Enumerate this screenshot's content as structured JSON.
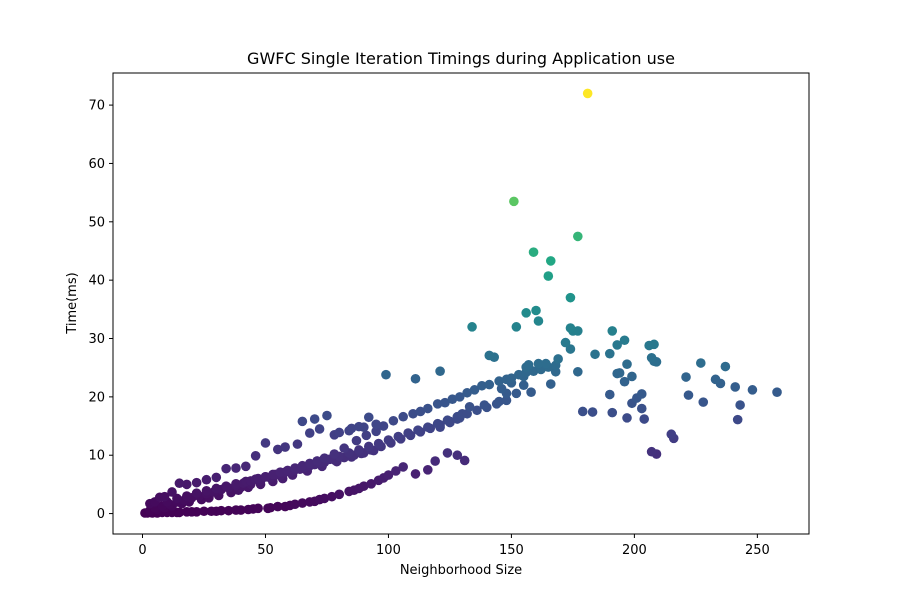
{
  "chart_data": {
    "type": "scatter",
    "title": "GWFC Single Iteration Timings during Application use",
    "xlabel": "Neighborhood Size",
    "ylabel": "Time(ms)",
    "xlim": [
      -12,
      271
    ],
    "ylim": [
      -3.5,
      75.5
    ],
    "xticks": [
      0,
      50,
      100,
      150,
      200,
      250
    ],
    "yticks": [
      0,
      10,
      20,
      30,
      40,
      50,
      60,
      70
    ],
    "grid": false,
    "colormap": "viridis",
    "color_range": [
      0,
      72
    ],
    "x": [
      181,
      151,
      177,
      159,
      166,
      165,
      174,
      156,
      160,
      161,
      134,
      152,
      174,
      175,
      177,
      191,
      196,
      206,
      208,
      207,
      208,
      209,
      197,
      199,
      193,
      193,
      190,
      184,
      174,
      172,
      169,
      168,
      164,
      162,
      161,
      157,
      156,
      155,
      150,
      146,
      143,
      141,
      258,
      248,
      243,
      242,
      241,
      237,
      235,
      233,
      228,
      227,
      222,
      221,
      215,
      216,
      209,
      207,
      204,
      203,
      203,
      201,
      199,
      197,
      196,
      194,
      191,
      190,
      183,
      179,
      177,
      168,
      166,
      158,
      155,
      152,
      148,
      145,
      139,
      133,
      130,
      128,
      125,
      121,
      99,
      111,
      121,
      131,
      128,
      124,
      119,
      116,
      111,
      106,
      103,
      100,
      98,
      96,
      93,
      90,
      88,
      86,
      84,
      80,
      77,
      74,
      72,
      70,
      68,
      65,
      62,
      60,
      58,
      55,
      52,
      51,
      47,
      45,
      43,
      40,
      38,
      35,
      32,
      30,
      28,
      25,
      22,
      20,
      18,
      15,
      14,
      12,
      10,
      8,
      6,
      4,
      2,
      1,
      65,
      70,
      75,
      80,
      85,
      90,
      95,
      92,
      88,
      84,
      78,
      72,
      68,
      63,
      58,
      55,
      50,
      46,
      42,
      38,
      34,
      30,
      26,
      22,
      18,
      15,
      12,
      9,
      7,
      5,
      3,
      60,
      66,
      71,
      74,
      78,
      82,
      87,
      91,
      95,
      98,
      102,
      106,
      110,
      113,
      116,
      120,
      123,
      126,
      129,
      132,
      135,
      138,
      141,
      145,
      148,
      150,
      153,
      156,
      159,
      162,
      165,
      40,
      44,
      48,
      52,
      56,
      60,
      64,
      68,
      72,
      76,
      80,
      84,
      88,
      92,
      96,
      100,
      104,
      108,
      112,
      116,
      120,
      124,
      128,
      132,
      136,
      140,
      144,
      148,
      10,
      14,
      18,
      22,
      26,
      30,
      34,
      38,
      42,
      46,
      50,
      54,
      58,
      62,
      66,
      70,
      74,
      78,
      82,
      86,
      90,
      94,
      5,
      8,
      11,
      14,
      17,
      20,
      23,
      26,
      29,
      32,
      35,
      38,
      41,
      44,
      47,
      50,
      53,
      56,
      59,
      62,
      65,
      68,
      71,
      3,
      6,
      9,
      12,
      16,
      19,
      24,
      27,
      31,
      36,
      39,
      43,
      48,
      53,
      57,
      61,
      67,
      73,
      79,
      85,
      89,
      93,
      97,
      101,
      105,
      109,
      113,
      117,
      121,
      125,
      129
    ],
    "y": [
      72.0,
      53.5,
      47.5,
      44.8,
      43.3,
      40.7,
      37.0,
      34.4,
      34.8,
      33.0,
      32.0,
      32.0,
      31.8,
      31.3,
      31.3,
      31.3,
      29.7,
      28.8,
      29.0,
      26.7,
      26.1,
      26.0,
      25.6,
      23.5,
      24.0,
      28.9,
      27.4,
      27.3,
      28.2,
      29.3,
      26.5,
      25.4,
      25.7,
      24.9,
      25.7,
      25.5,
      25.1,
      23.5,
      22.4,
      21.4,
      26.8,
      27.1,
      20.8,
      21.2,
      18.6,
      16.1,
      21.7,
      25.2,
      22.3,
      23.0,
      19.1,
      25.8,
      20.3,
      23.4,
      13.6,
      12.9,
      10.2,
      10.6,
      16.2,
      20.5,
      18.0,
      19.8,
      18.9,
      16.4,
      22.6,
      24.1,
      17.3,
      20.4,
      17.4,
      17.5,
      24.3,
      24.3,
      22.2,
      20.8,
      22.0,
      20.6,
      20.6,
      19.2,
      18.6,
      18.3,
      17.1,
      16.2,
      15.6,
      14.8,
      23.8,
      23.1,
      24.4,
      9.1,
      10.0,
      10.4,
      9.0,
      7.5,
      6.8,
      8.0,
      7.3,
      6.6,
      6.1,
      5.7,
      5.1,
      4.7,
      4.3,
      4.0,
      3.8,
      3.3,
      2.9,
      2.6,
      2.4,
      2.1,
      2.0,
      1.8,
      1.6,
      1.4,
      1.2,
      1.2,
      1.0,
      0.9,
      0.9,
      0.8,
      0.7,
      0.6,
      0.6,
      0.5,
      0.5,
      0.4,
      0.4,
      0.4,
      0.3,
      0.3,
      0.3,
      0.2,
      0.2,
      0.2,
      0.2,
      0.2,
      0.1,
      0.1,
      0.1,
      0.1,
      15.8,
      16.2,
      16.8,
      13.9,
      14.6,
      14.8,
      15.3,
      16.5,
      14.9,
      14.2,
      13.5,
      14.5,
      13.8,
      11.9,
      11.4,
      11.0,
      12.1,
      9.9,
      8.1,
      7.8,
      7.7,
      6.2,
      5.8,
      5.3,
      5.0,
      5.2,
      3.7,
      2.9,
      2.8,
      2.0,
      1.7,
      7.1,
      8.0,
      9.0,
      9.5,
      10.2,
      11.2,
      12.5,
      13.4,
      14.1,
      15.0,
      15.9,
      16.6,
      17.1,
      17.5,
      18.0,
      18.8,
      19.0,
      19.6,
      20.0,
      20.7,
      21.2,
      21.9,
      22.1,
      22.7,
      23.0,
      23.2,
      23.8,
      24.2,
      24.4,
      24.7,
      25.1,
      4.5,
      5.0,
      5.6,
      6.1,
      6.5,
      7.1,
      7.6,
      8.2,
      8.7,
      9.3,
      9.8,
      10.4,
      10.9,
      11.5,
      12.0,
      12.6,
      13.2,
      13.8,
      14.3,
      14.8,
      15.4,
      16.0,
      16.6,
      17.1,
      17.7,
      18.2,
      18.8,
      19.4,
      2.0,
      2.6,
      3.0,
      3.5,
      3.9,
      4.3,
      4.7,
      5.1,
      5.5,
      5.9,
      6.3,
      6.7,
      7.1,
      7.5,
      7.9,
      8.4,
      8.8,
      9.2,
      9.6,
      10.0,
      10.4,
      10.8,
      1.0,
      1.3,
      1.6,
      2.0,
      2.3,
      2.7,
      3.0,
      3.4,
      3.7,
      4.1,
      4.4,
      4.8,
      5.2,
      5.6,
      6.0,
      6.3,
      6.7,
      7.1,
      7.4,
      7.8,
      8.2,
      8.6,
      9.0,
      0.5,
      0.7,
      1.0,
      1.3,
      1.7,
      2.0,
      2.4,
      2.7,
      3.1,
      3.6,
      4.0,
      4.5,
      5.0,
      5.5,
      6.0,
      6.6,
      7.3,
      8.1,
      8.9,
      9.7,
      10.3,
      10.9,
      11.5,
      12.1,
      12.8,
      13.4,
      14.0,
      14.6,
      15.2,
      15.8,
      16.4
    ]
  }
}
